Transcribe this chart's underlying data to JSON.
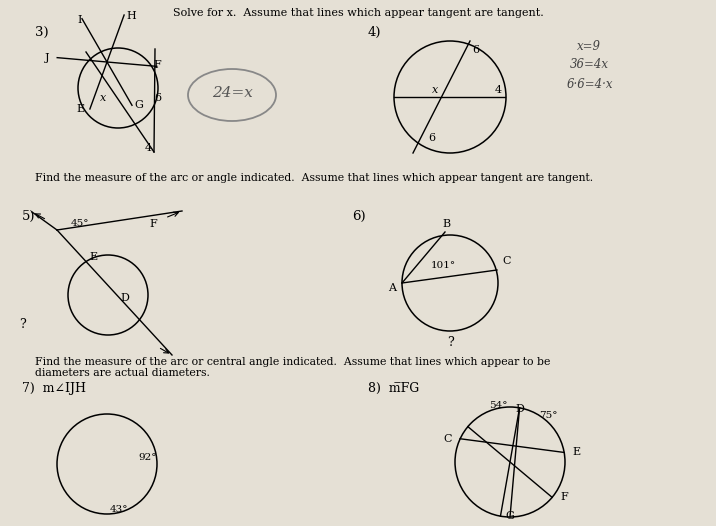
{
  "bg_color": "#e5e0d5",
  "title_solve": "Solve for x.  Assume that lines which appear tangent are tangent.",
  "label_find1": "Find the measure of the arc or angle indicated.  Assume that lines which appear tangent are tangent.",
  "label_find2": "Find the measure of the arc or central angle indicated.  Assume that lines which appear to be\ndiameters are actual diameters.",
  "label3": "3)",
  "label4": "4)",
  "label5": "5)",
  "label6": "6)",
  "label7": "7)  m∠IJH",
  "label8": "8)  m̅FG"
}
